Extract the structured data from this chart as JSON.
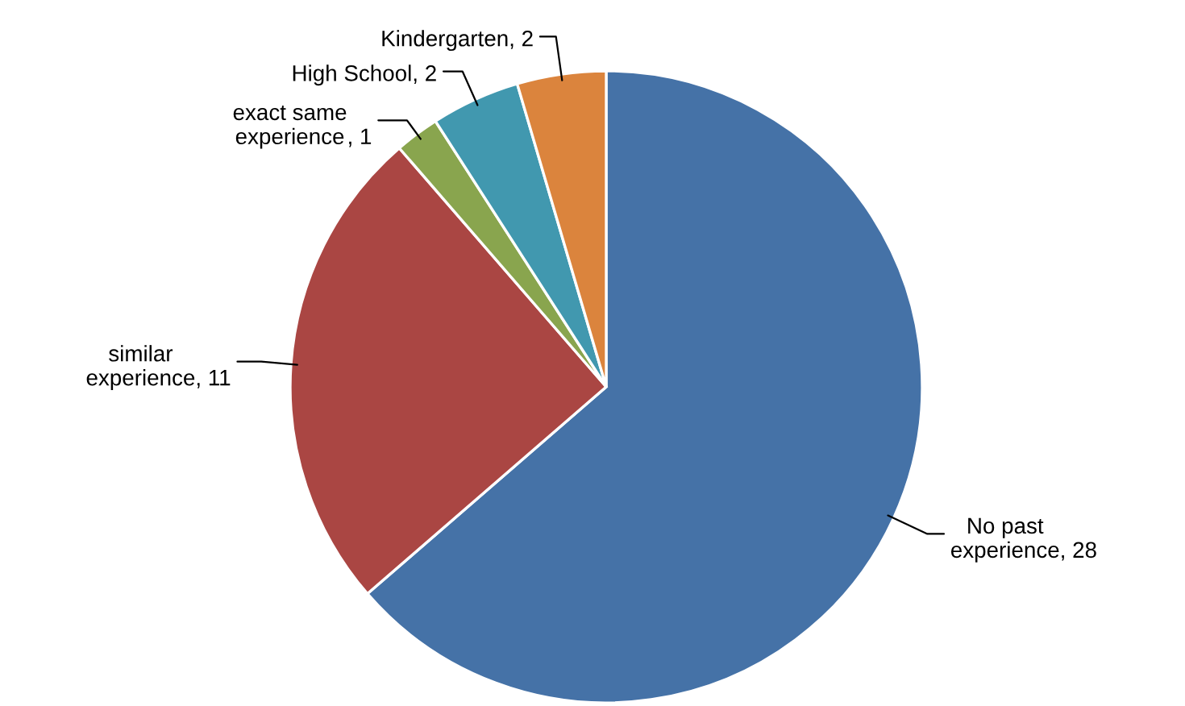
{
  "chart_data": {
    "type": "pie",
    "categories": [
      "No past\nexperience",
      "similar\nexperience",
      "exact same\nexperience",
      "High School",
      "Kindergarten"
    ],
    "values": [
      28,
      11,
      1,
      2,
      2
    ],
    "colors": [
      "#4572a7",
      "#aa4643",
      "#89a54e",
      "#4198af",
      "#db843d"
    ],
    "value_labels": [
      ", 28",
      ", 11",
      ", 1",
      ", 2",
      ", 2"
    ]
  }
}
